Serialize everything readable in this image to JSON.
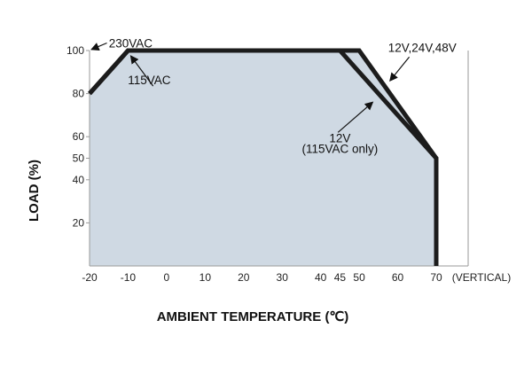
{
  "chart_data": {
    "type": "line",
    "ylabel": "LOAD (%)",
    "xlabel": "AMBIENT TEMPERATURE (℃)",
    "x_note": "(VERTICAL)",
    "xlim": [
      -20,
      70
    ],
    "ylim": [
      0,
      100
    ],
    "x_ticks": [
      "-20",
      "-10",
      "0",
      "10",
      "20",
      "30",
      "40",
      "45",
      "50",
      "60",
      "70"
    ],
    "x_tick_values": [
      -20,
      -10,
      0,
      10,
      20,
      30,
      40,
      45,
      50,
      60,
      70
    ],
    "y_ticks": [
      "20",
      "40",
      "50",
      "60",
      "80",
      "100"
    ],
    "y_tick_values": [
      20,
      40,
      50,
      60,
      80,
      100
    ],
    "series": [
      {
        "name": "12V,24V,48V",
        "x": [
          -20,
          -10,
          50,
          70,
          70
        ],
        "y": [
          80,
          100,
          100,
          50,
          0
        ]
      },
      {
        "name": "12V (115VAC only)",
        "x": [
          -20,
          -10,
          45,
          70,
          70
        ],
        "y": [
          80,
          100,
          100,
          50,
          0
        ]
      }
    ],
    "annotations": [
      {
        "text": "230VAC",
        "x": -15,
        "y": 103.5
      },
      {
        "text": "115VAC",
        "x": -4.5,
        "y": 86.5
      },
      {
        "text": "12V,24V,48V",
        "x": 57.5,
        "y": 101.5
      },
      {
        "text": "12V",
        "x": 45,
        "y": 59.5
      },
      {
        "text": "(115VAC only)",
        "x": 45,
        "y": 54.5
      }
    ],
    "colors": {
      "fill": "#cfd9e3",
      "line": "#1c1c1c",
      "text": "#111111"
    }
  }
}
